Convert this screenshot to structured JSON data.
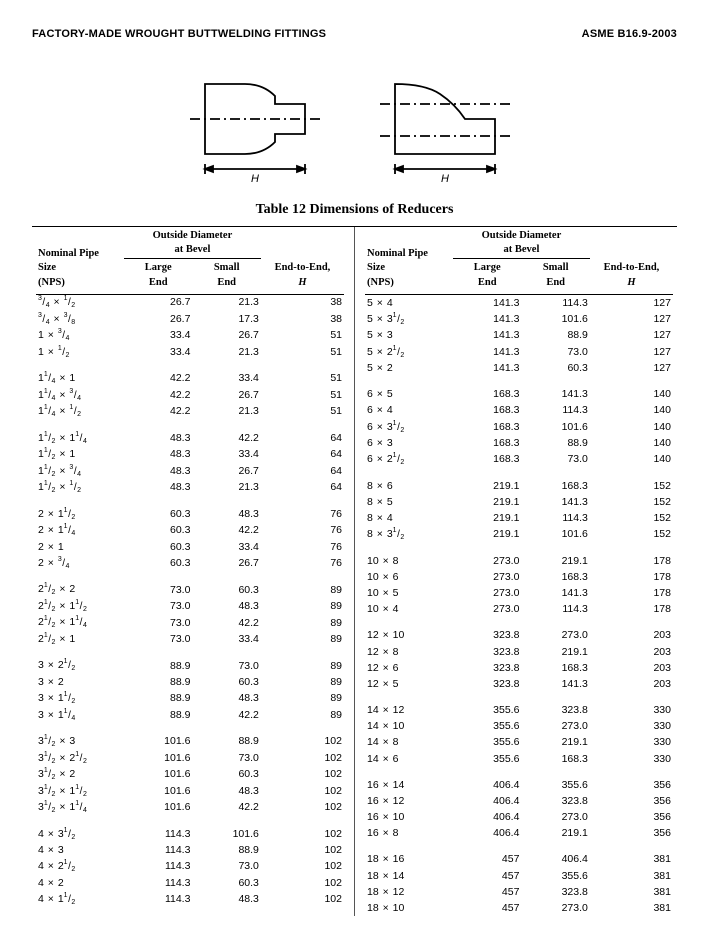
{
  "header": {
    "left": "FACTORY-MADE WROUGHT BUTTWELDING FITTINGS",
    "right": "ASME B16.9-2003"
  },
  "diagrams": {
    "label_H": "H",
    "stroke": "#000000",
    "fill": "#ffffff"
  },
  "title": "Table 12   Dimensions of Reducers",
  "headers": {
    "nps1": "Nominal Pipe",
    "nps2": "Size",
    "nps3": "(NPS)",
    "od": "Outside Diameter",
    "od2": "at Bevel",
    "large1": "Large",
    "large2": "End",
    "small1": "Small",
    "small2": "End",
    "e2e1": "End-to-End,",
    "e2e2": "H"
  },
  "left_groups": [
    [
      {
        "nps": [
          "3/4",
          "1/2"
        ],
        "l": "26.7",
        "s": "21.3",
        "h": "38"
      },
      {
        "nps": [
          "3/4",
          "3/8"
        ],
        "l": "26.7",
        "s": "17.3",
        "h": "38"
      },
      {
        "nps": [
          "1",
          "3/4"
        ],
        "l": "33.4",
        "s": "26.7",
        "h": "51"
      },
      {
        "nps": [
          "1",
          "1/2"
        ],
        "l": "33.4",
        "s": "21.3",
        "h": "51"
      }
    ],
    [
      {
        "nps": [
          "1 1/4",
          "1"
        ],
        "l": "42.2",
        "s": "33.4",
        "h": "51"
      },
      {
        "nps": [
          "1 1/4",
          "3/4"
        ],
        "l": "42.2",
        "s": "26.7",
        "h": "51"
      },
      {
        "nps": [
          "1 1/4",
          "1/2"
        ],
        "l": "42.2",
        "s": "21.3",
        "h": "51"
      }
    ],
    [
      {
        "nps": [
          "1 1/2",
          "1 1/4"
        ],
        "l": "48.3",
        "s": "42.2",
        "h": "64"
      },
      {
        "nps": [
          "1 1/2",
          "1"
        ],
        "l": "48.3",
        "s": "33.4",
        "h": "64"
      },
      {
        "nps": [
          "1 1/2",
          "3/4"
        ],
        "l": "48.3",
        "s": "26.7",
        "h": "64"
      },
      {
        "nps": [
          "1 1/2",
          "1/2"
        ],
        "l": "48.3",
        "s": "21.3",
        "h": "64"
      }
    ],
    [
      {
        "nps": [
          "2",
          "1 1/2"
        ],
        "l": "60.3",
        "s": "48.3",
        "h": "76"
      },
      {
        "nps": [
          "2",
          "1 1/4"
        ],
        "l": "60.3",
        "s": "42.2",
        "h": "76"
      },
      {
        "nps": [
          "2",
          "1"
        ],
        "l": "60.3",
        "s": "33.4",
        "h": "76"
      },
      {
        "nps": [
          "2",
          "3/4"
        ],
        "l": "60.3",
        "s": "26.7",
        "h": "76"
      }
    ],
    [
      {
        "nps": [
          "2 1/2",
          "2"
        ],
        "l": "73.0",
        "s": "60.3",
        "h": "89"
      },
      {
        "nps": [
          "2 1/2",
          "1 1/2"
        ],
        "l": "73.0",
        "s": "48.3",
        "h": "89"
      },
      {
        "nps": [
          "2 1/2",
          "1 1/4"
        ],
        "l": "73.0",
        "s": "42.2",
        "h": "89"
      },
      {
        "nps": [
          "2 1/2",
          "1"
        ],
        "l": "73.0",
        "s": "33.4",
        "h": "89"
      }
    ],
    [
      {
        "nps": [
          "3",
          "2 1/2"
        ],
        "l": "88.9",
        "s": "73.0",
        "h": "89"
      },
      {
        "nps": [
          "3",
          "2"
        ],
        "l": "88.9",
        "s": "60.3",
        "h": "89"
      },
      {
        "nps": [
          "3",
          "1 1/2"
        ],
        "l": "88.9",
        "s": "48.3",
        "h": "89"
      },
      {
        "nps": [
          "3",
          "1 1/4"
        ],
        "l": "88.9",
        "s": "42.2",
        "h": "89"
      }
    ],
    [
      {
        "nps": [
          "3 1/2",
          "3"
        ],
        "l": "101.6",
        "s": "88.9",
        "h": "102"
      },
      {
        "nps": [
          "3 1/2",
          "2 1/2"
        ],
        "l": "101.6",
        "s": "73.0",
        "h": "102"
      },
      {
        "nps": [
          "3 1/2",
          "2"
        ],
        "l": "101.6",
        "s": "60.3",
        "h": "102"
      },
      {
        "nps": [
          "3 1/2",
          "1 1/2"
        ],
        "l": "101.6",
        "s": "48.3",
        "h": "102"
      },
      {
        "nps": [
          "3 1/2",
          "1 1/4"
        ],
        "l": "101.6",
        "s": "42.2",
        "h": "102"
      }
    ],
    [
      {
        "nps": [
          "4",
          "3 1/2"
        ],
        "l": "114.3",
        "s": "101.6",
        "h": "102"
      },
      {
        "nps": [
          "4",
          "3"
        ],
        "l": "114.3",
        "s": "88.9",
        "h": "102"
      },
      {
        "nps": [
          "4",
          "2 1/2"
        ],
        "l": "114.3",
        "s": "73.0",
        "h": "102"
      },
      {
        "nps": [
          "4",
          "2"
        ],
        "l": "114.3",
        "s": "60.3",
        "h": "102"
      },
      {
        "nps": [
          "4",
          "1 1/2"
        ],
        "l": "114.3",
        "s": "48.3",
        "h": "102"
      }
    ]
  ],
  "right_groups": [
    [
      {
        "nps": [
          "5",
          "4"
        ],
        "l": "141.3",
        "s": "114.3",
        "h": "127"
      },
      {
        "nps": [
          "5",
          "3 1/2"
        ],
        "l": "141.3",
        "s": "101.6",
        "h": "127"
      },
      {
        "nps": [
          "5",
          "3"
        ],
        "l": "141.3",
        "s": "88.9",
        "h": "127"
      },
      {
        "nps": [
          "5",
          "2 1/2"
        ],
        "l": "141.3",
        "s": "73.0",
        "h": "127"
      },
      {
        "nps": [
          "5",
          "2"
        ],
        "l": "141.3",
        "s": "60.3",
        "h": "127"
      }
    ],
    [
      {
        "nps": [
          "6",
          "5"
        ],
        "l": "168.3",
        "s": "141.3",
        "h": "140"
      },
      {
        "nps": [
          "6",
          "4"
        ],
        "l": "168.3",
        "s": "114.3",
        "h": "140"
      },
      {
        "nps": [
          "6",
          "3 1/2"
        ],
        "l": "168.3",
        "s": "101.6",
        "h": "140"
      },
      {
        "nps": [
          "6",
          "3"
        ],
        "l": "168.3",
        "s": "88.9",
        "h": "140"
      },
      {
        "nps": [
          "6",
          "2 1/2"
        ],
        "l": "168.3",
        "s": "73.0",
        "h": "140"
      }
    ],
    [
      {
        "nps": [
          "8",
          "6"
        ],
        "l": "219.1",
        "s": "168.3",
        "h": "152"
      },
      {
        "nps": [
          "8",
          "5"
        ],
        "l": "219.1",
        "s": "141.3",
        "h": "152"
      },
      {
        "nps": [
          "8",
          "4"
        ],
        "l": "219.1",
        "s": "114.3",
        "h": "152"
      },
      {
        "nps": [
          "8",
          "3 1/2"
        ],
        "l": "219.1",
        "s": "101.6",
        "h": "152"
      }
    ],
    [
      {
        "nps": [
          "10",
          "8"
        ],
        "l": "273.0",
        "s": "219.1",
        "h": "178"
      },
      {
        "nps": [
          "10",
          "6"
        ],
        "l": "273.0",
        "s": "168.3",
        "h": "178"
      },
      {
        "nps": [
          "10",
          "5"
        ],
        "l": "273.0",
        "s": "141.3",
        "h": "178"
      },
      {
        "nps": [
          "10",
          "4"
        ],
        "l": "273.0",
        "s": "114.3",
        "h": "178"
      }
    ],
    [
      {
        "nps": [
          "12",
          "10"
        ],
        "l": "323.8",
        "s": "273.0",
        "h": "203"
      },
      {
        "nps": [
          "12",
          "8"
        ],
        "l": "323.8",
        "s": "219.1",
        "h": "203"
      },
      {
        "nps": [
          "12",
          "6"
        ],
        "l": "323.8",
        "s": "168.3",
        "h": "203"
      },
      {
        "nps": [
          "12",
          "5"
        ],
        "l": "323.8",
        "s": "141.3",
        "h": "203"
      }
    ],
    [
      {
        "nps": [
          "14",
          "12"
        ],
        "l": "355.6",
        "s": "323.8",
        "h": "330"
      },
      {
        "nps": [
          "14",
          "10"
        ],
        "l": "355.6",
        "s": "273.0",
        "h": "330"
      },
      {
        "nps": [
          "14",
          "8"
        ],
        "l": "355.6",
        "s": "219.1",
        "h": "330"
      },
      {
        "nps": [
          "14",
          "6"
        ],
        "l": "355.6",
        "s": "168.3",
        "h": "330"
      }
    ],
    [
      {
        "nps": [
          "16",
          "14"
        ],
        "l": "406.4",
        "s": "355.6",
        "h": "356"
      },
      {
        "nps": [
          "16",
          "12"
        ],
        "l": "406.4",
        "s": "323.8",
        "h": "356"
      },
      {
        "nps": [
          "16",
          "10"
        ],
        "l": "406.4",
        "s": "273.0",
        "h": "356"
      },
      {
        "nps": [
          "16",
          "8"
        ],
        "l": "406.4",
        "s": "219.1",
        "h": "356"
      }
    ],
    [
      {
        "nps": [
          "18",
          "16"
        ],
        "l": "457",
        "s": "406.4",
        "h": "381"
      },
      {
        "nps": [
          "18",
          "14"
        ],
        "l": "457",
        "s": "355.6",
        "h": "381"
      },
      {
        "nps": [
          "18",
          "12"
        ],
        "l": "457",
        "s": "323.8",
        "h": "381"
      },
      {
        "nps": [
          "18",
          "10"
        ],
        "l": "457",
        "s": "273.0",
        "h": "381"
      }
    ]
  ]
}
